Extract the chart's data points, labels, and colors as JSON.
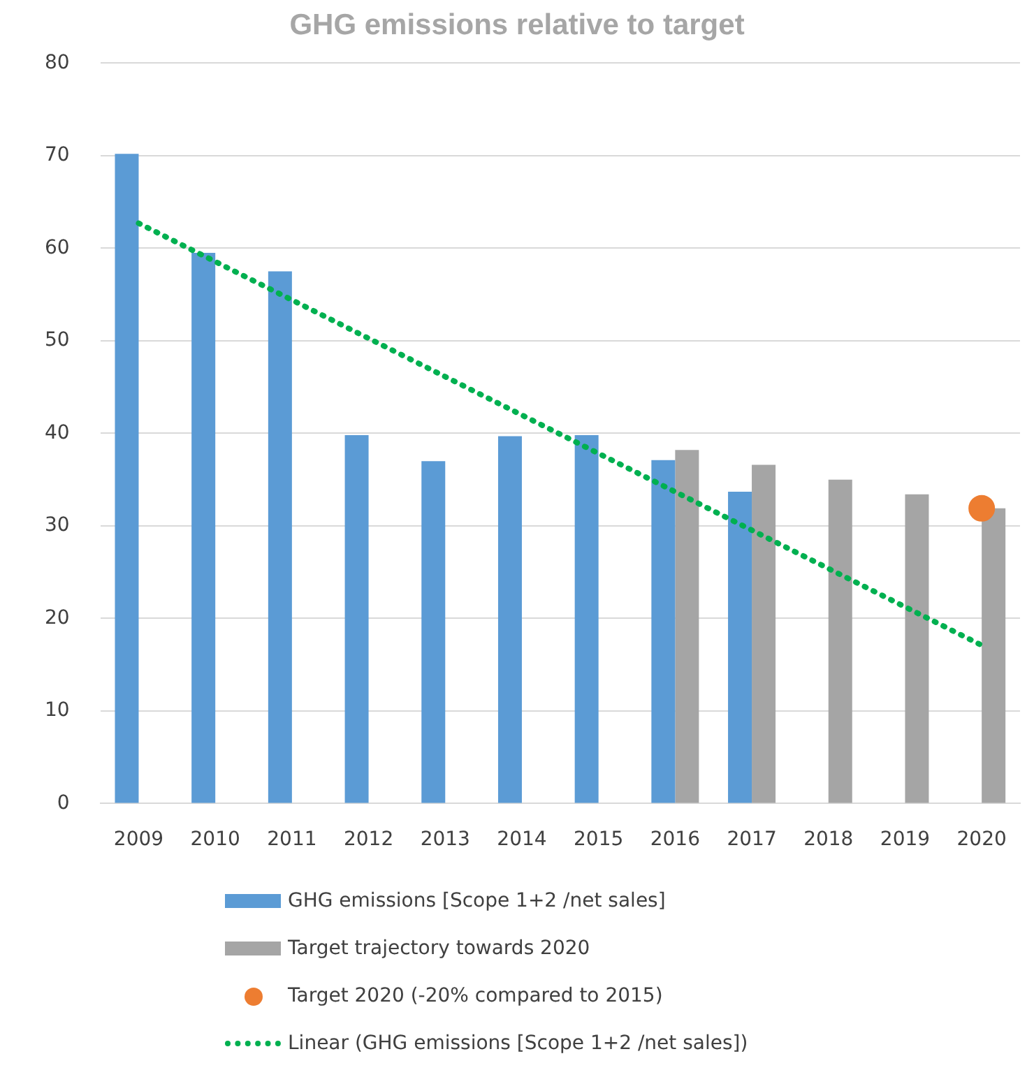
{
  "chart_data": {
    "type": "bar",
    "title": "GHG emissions relative to target",
    "categories": [
      "2009",
      "2010",
      "2011",
      "2012",
      "2013",
      "2014",
      "2015",
      "2016",
      "2017",
      "2018",
      "2019",
      "2020"
    ],
    "series": [
      {
        "name": "GHG emissions [Scope 1+2 /net sales]",
        "color": "#5b9bd5",
        "values": [
          70.2,
          59.5,
          57.5,
          39.8,
          37.0,
          39.7,
          39.8,
          37.1,
          33.7,
          null,
          null,
          null
        ]
      },
      {
        "name": "Target trajectory towards 2020",
        "color": "#a5a5a5",
        "values": [
          null,
          null,
          null,
          null,
          null,
          null,
          null,
          38.2,
          36.6,
          35.0,
          33.4,
          31.9
        ]
      },
      {
        "name": "Target 2020 (-20% compared to 2015)",
        "type": "scatter",
        "color": "#ed7d31",
        "marker": "circle",
        "values": [
          null,
          null,
          null,
          null,
          null,
          null,
          null,
          null,
          null,
          null,
          null,
          31.9
        ]
      },
      {
        "name": "Linear (GHG emissions [Scope 1+2 /net sales])",
        "type": "line",
        "color": "#00b050",
        "line_style": "dotted",
        "marker": "none",
        "values": [
          62.7,
          null,
          null,
          null,
          null,
          null,
          null,
          null,
          null,
          null,
          null,
          17.1
        ]
      }
    ],
    "ylim": [
      0,
      80
    ],
    "yticks": [
      0,
      10,
      20,
      30,
      40,
      50,
      60,
      70,
      80
    ],
    "grid": "y",
    "legend": "bottom"
  }
}
